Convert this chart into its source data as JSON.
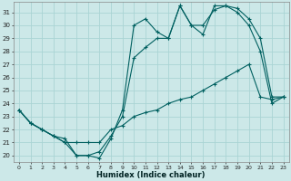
{
  "xlabel": "Humidex (Indice chaleur)",
  "bg_color": "#cce8e8",
  "grid_color": "#aad4d4",
  "line_color": "#006060",
  "xlim": [
    -0.5,
    23.5
  ],
  "ylim": [
    19.5,
    31.8
  ],
  "xticks": [
    0,
    1,
    2,
    3,
    4,
    5,
    6,
    7,
    8,
    9,
    10,
    11,
    12,
    13,
    14,
    15,
    16,
    17,
    18,
    19,
    20,
    21,
    22,
    23
  ],
  "yticks": [
    20,
    21,
    22,
    23,
    24,
    25,
    26,
    27,
    28,
    29,
    30,
    31
  ],
  "s1_x": [
    0,
    1,
    2,
    3,
    4,
    5,
    6,
    7,
    8,
    9,
    10,
    11,
    12,
    13,
    14,
    15,
    16,
    17,
    18,
    19,
    20,
    21,
    22,
    23
  ],
  "s1_y": [
    23.5,
    22.5,
    22.0,
    21.5,
    21.3,
    20.0,
    20.0,
    19.8,
    21.3,
    23.5,
    30.0,
    30.5,
    29.5,
    29.0,
    31.5,
    30.0,
    29.3,
    31.5,
    31.5,
    31.3,
    30.5,
    29.0,
    24.5,
    24.5
  ],
  "s2_x": [
    0,
    1,
    2,
    3,
    4,
    5,
    6,
    7,
    8,
    9,
    10,
    11,
    12,
    13,
    14,
    15,
    16,
    17,
    18,
    19,
    20,
    21,
    22,
    23
  ],
  "s2_y": [
    23.5,
    22.5,
    22.0,
    21.5,
    21.0,
    20.0,
    20.0,
    20.3,
    21.5,
    23.0,
    27.5,
    28.3,
    29.0,
    29.0,
    31.5,
    30.0,
    30.0,
    31.2,
    31.5,
    31.0,
    30.0,
    28.0,
    24.0,
    24.5
  ],
  "s3_x": [
    0,
    1,
    2,
    3,
    4,
    5,
    6,
    7,
    8,
    9,
    10,
    11,
    12,
    13,
    14,
    15,
    16,
    17,
    18,
    19,
    20,
    21,
    22,
    23
  ],
  "s3_y": [
    23.5,
    22.5,
    22.0,
    21.5,
    21.0,
    21.0,
    21.0,
    21.0,
    22.0,
    22.3,
    23.0,
    23.3,
    23.5,
    24.0,
    24.3,
    24.5,
    25.0,
    25.5,
    26.0,
    26.5,
    27.0,
    24.5,
    24.3,
    24.5
  ]
}
